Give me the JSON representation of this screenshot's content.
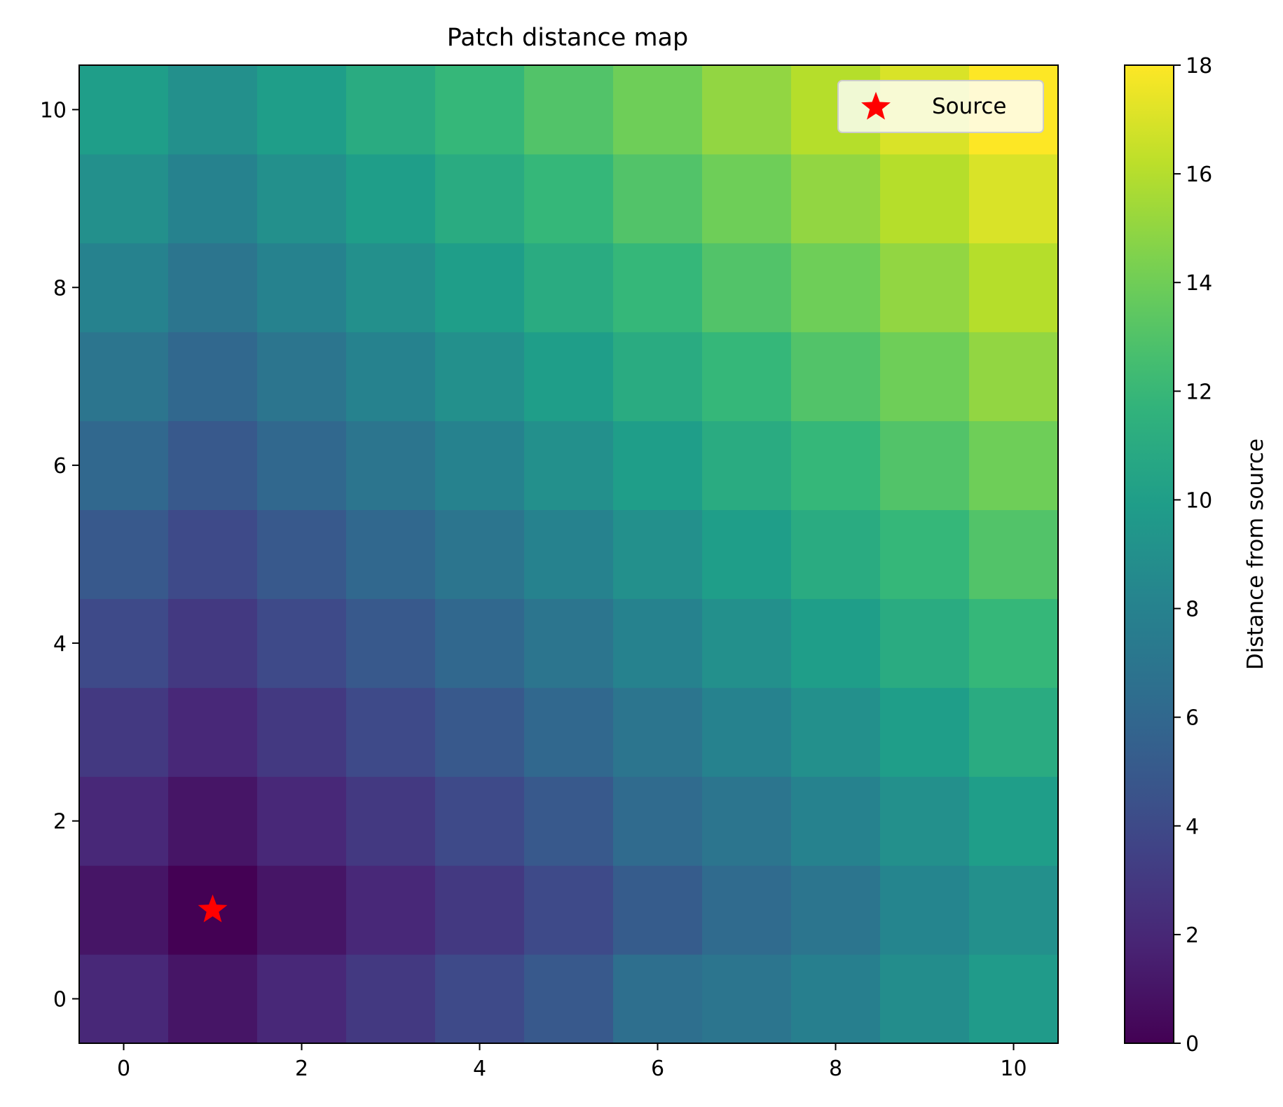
{
  "chart_data": {
    "type": "heatmap",
    "title": "Patch distance map",
    "xlabel": "",
    "ylabel": "",
    "x": [
      0,
      1,
      2,
      3,
      4,
      5,
      6,
      7,
      8,
      9,
      10
    ],
    "y": [
      0,
      1,
      2,
      3,
      4,
      5,
      6,
      7,
      8,
      9,
      10
    ],
    "xlim": [
      -0.5,
      10.5
    ],
    "ylim": [
      -0.5,
      10.5
    ],
    "xticks": [
      0,
      2,
      4,
      6,
      8,
      10
    ],
    "yticks": [
      0,
      2,
      4,
      6,
      8,
      10
    ],
    "values": [
      [
        2.0,
        1.0,
        2.0,
        3.0,
        4.0,
        5.0,
        6.5,
        7.0,
        7.8,
        8.8,
        9.8
      ],
      [
        1.0,
        0.0,
        1.0,
        2.0,
        3.0,
        4.0,
        5.2,
        6.2,
        7.0,
        8.2,
        9.0
      ],
      [
        2.0,
        1.0,
        2.0,
        3.0,
        4.0,
        5.0,
        6.2,
        7.0,
        8.0,
        9.0,
        10.0
      ],
      [
        3.0,
        2.0,
        3.0,
        4.0,
        5.0,
        6.0,
        7.0,
        8.0,
        9.0,
        10.0,
        11.0
      ],
      [
        4.0,
        3.0,
        4.0,
        5.0,
        6.0,
        7.0,
        8.0,
        9.0,
        10.0,
        11.0,
        12.0
      ],
      [
        5.0,
        4.0,
        5.0,
        6.0,
        7.0,
        8.0,
        9.0,
        10.0,
        11.0,
        12.0,
        13.0
      ],
      [
        6.0,
        5.0,
        6.0,
        7.0,
        8.0,
        9.0,
        10.0,
        11.0,
        12.0,
        13.0,
        14.0
      ],
      [
        7.0,
        6.0,
        7.0,
        8.0,
        9.0,
        10.0,
        11.0,
        12.0,
        13.0,
        14.0,
        15.0
      ],
      [
        8.0,
        7.0,
        8.0,
        9.0,
        10.0,
        11.0,
        12.0,
        13.0,
        14.0,
        15.0,
        16.0
      ],
      [
        9.0,
        8.0,
        9.0,
        10.0,
        11.0,
        12.0,
        13.0,
        14.0,
        15.0,
        16.0,
        17.0
      ],
      [
        10.0,
        9.0,
        10.0,
        11.0,
        12.0,
        13.0,
        14.0,
        15.0,
        16.0,
        17.0,
        18.0
      ]
    ],
    "colormap": "viridis",
    "colorbar": {
      "label": "Distance from source",
      "range": [
        0,
        18
      ],
      "ticks": [
        0,
        2,
        4,
        6,
        8,
        10,
        12,
        14,
        16,
        18
      ]
    },
    "markers": [
      {
        "label": "Source",
        "x": 1,
        "y": 1,
        "symbol": "star",
        "color": "#ff0000"
      }
    ],
    "legend": {
      "position": "top-right",
      "entries": [
        "Source"
      ]
    },
    "grid": false
  }
}
